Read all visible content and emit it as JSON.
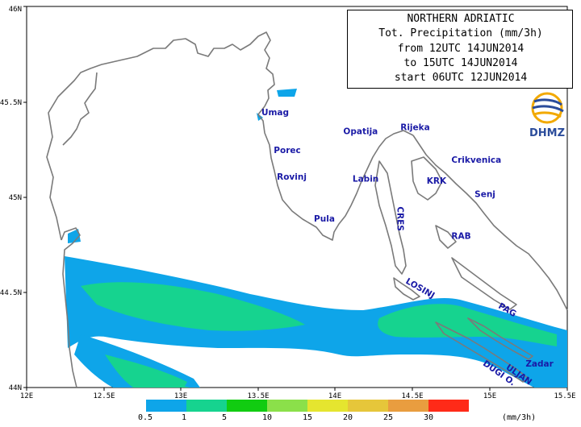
{
  "title": {
    "line1": "NORTHERN ADRIATIC",
    "line2": "Tot. Precipitation (mm/3h)",
    "line3": "from 12UTC 14JUN2014",
    "line4": "to 15UTC 14JUN2014",
    "line5": "start 06UTC 12JUN2014"
  },
  "logo": {
    "text": "DHMZ",
    "colors": [
      "#f2a900",
      "#2b4c9b"
    ]
  },
  "axes": {
    "x_ticks": [
      "12E",
      "12.5E",
      "13E",
      "13.5E",
      "14E",
      "14.5E",
      "15E",
      "15.5E"
    ],
    "y_ticks": [
      "46N",
      "45.5N",
      "45N",
      "44.5N",
      "44N"
    ],
    "x_range": [
      12,
      15.5
    ],
    "y_range": [
      44,
      46
    ]
  },
  "places": [
    {
      "name": "Umag",
      "lon": 13.52,
      "lat": 45.43
    },
    {
      "name": "Opatija",
      "lon": 14.05,
      "lat": 45.33
    },
    {
      "name": "Rijeka",
      "lon": 14.42,
      "lat": 45.35
    },
    {
      "name": "Crikvenica",
      "lon": 14.75,
      "lat": 45.18
    },
    {
      "name": "Porec",
      "lon": 13.6,
      "lat": 45.23
    },
    {
      "name": "Rovinj",
      "lon": 13.62,
      "lat": 45.09
    },
    {
      "name": "Labin",
      "lon": 14.11,
      "lat": 45.08
    },
    {
      "name": "KRK",
      "lon": 14.59,
      "lat": 45.07
    },
    {
      "name": "Senj",
      "lon": 14.9,
      "lat": 45.0
    },
    {
      "name": "Pula",
      "lon": 13.86,
      "lat": 44.87
    },
    {
      "name": "CRES",
      "lon": 14.4,
      "lat": 44.95
    },
    {
      "name": "RAB",
      "lon": 14.75,
      "lat": 44.78
    },
    {
      "name": "LOSINJ",
      "lon": 14.45,
      "lat": 44.55
    },
    {
      "name": "PAG",
      "lon": 15.05,
      "lat": 44.42
    },
    {
      "name": "ULJAN",
      "lon": 15.1,
      "lat": 44.1
    },
    {
      "name": "Zadar",
      "lon": 15.23,
      "lat": 44.11
    },
    {
      "name": "DUGI O.",
      "lon": 14.95,
      "lat": 44.12
    }
  ],
  "legend": {
    "thresholds": [
      "0.5",
      "1",
      "5",
      "10",
      "15",
      "20",
      "25",
      "30"
    ],
    "colors": [
      "#0ea5e9",
      "#16d38f",
      "#11cc11",
      "#8be04a",
      "#e5e52f",
      "#e6c63a",
      "#e99d3f",
      "#ff2a18"
    ],
    "unit": "(mm/3h)"
  },
  "colors": {
    "coast": "#7a7a7a",
    "precip_light": "#0ea5e9",
    "precip_heavy": "#16d38f"
  }
}
